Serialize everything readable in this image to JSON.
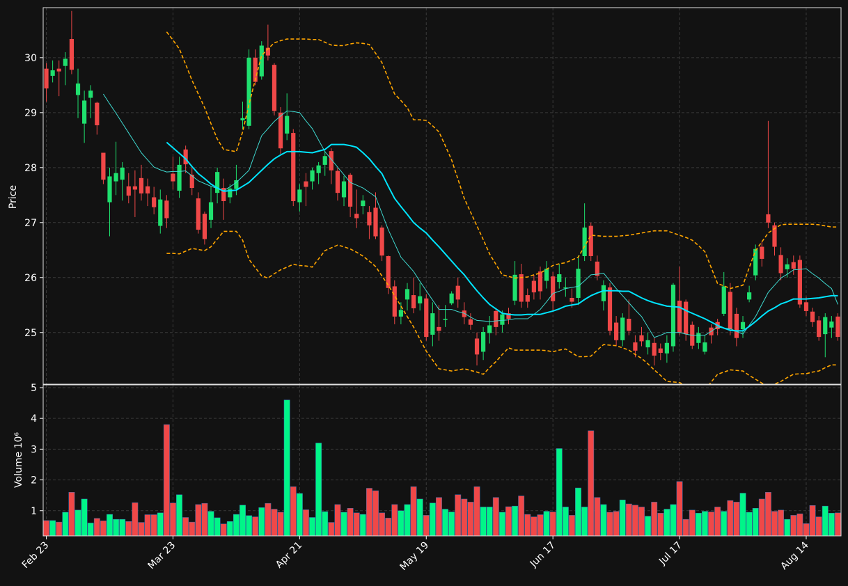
{
  "chart_data": {
    "type": "candlestick",
    "ylabel": "Price",
    "volume_ylabel": "Volume  10⁶",
    "categories": [
      "Feb 23",
      null,
      null,
      null,
      null,
      null,
      null,
      null,
      null,
      null,
      null,
      null,
      null,
      null,
      null,
      null,
      null,
      null,
      null,
      null,
      "Mar 23",
      null,
      null,
      null,
      null,
      null,
      null,
      null,
      null,
      null,
      null,
      null,
      null,
      null,
      null,
      null,
      null,
      null,
      null,
      null,
      "Apr 21",
      null,
      null,
      null,
      null,
      null,
      null,
      null,
      null,
      null,
      null,
      null,
      null,
      null,
      null,
      null,
      null,
      null,
      null,
      null,
      "May 19",
      null,
      null,
      null,
      null,
      null,
      null,
      null,
      null,
      null,
      null,
      null,
      null,
      null,
      null,
      null,
      null,
      null,
      null,
      null,
      "Jun 17",
      null,
      null,
      null,
      null,
      null,
      null,
      null,
      null,
      null,
      null,
      null,
      null,
      null,
      null,
      null,
      null,
      null,
      null,
      null,
      "Jul 17",
      null,
      null,
      null,
      null,
      null,
      null,
      null,
      null,
      null,
      null,
      null,
      null,
      null,
      null,
      null,
      null,
      null,
      null,
      null,
      "Aug 14",
      null,
      null,
      null,
      null,
      null
    ],
    "open": [
      29.8,
      29.67,
      29.8,
      29.85,
      30.34,
      29.32,
      28.8,
      29.27,
      29.18,
      28.27,
      27.37,
      27.75,
      27.78,
      27.66,
      27.66,
      27.81,
      27.66,
      27.46,
      26.94,
      27.4,
      27.89,
      27.58,
      28.33,
      27.87,
      27.44,
      27.16,
      27.05,
      27.54,
      27.63,
      27.46,
      27.61,
      28.86,
      28.76,
      30.0,
      29.66,
      30.18,
      29.87,
      29.0,
      28.62,
      28.63,
      27.37,
      27.75,
      27.75,
      27.9,
      28.05,
      28.3,
      27.94,
      27.46,
      27.87,
      27.16,
      27.3,
      27.19,
      27.27,
      26.91,
      26.39,
      25.84,
      25.29,
      25.6,
      25.68,
      25.53,
      25.62,
      24.96,
      25.1,
      25.23,
      25.53,
      25.85,
      25.4,
      25.24,
      24.89,
      24.65,
      24.99,
      25.39,
      25.14,
      25.35,
      25.58,
      26.06,
      25.68,
      25.94,
      26.11,
      25.94,
      26.02,
      25.92,
      25.8,
      25.63,
      25.63,
      26.39,
      26.94,
      26.29,
      25.57,
      25.82,
      25.18,
      24.86,
      25.25,
      24.82,
      24.95,
      24.73,
      24.81,
      24.71,
      24.62,
      24.75,
      25.58,
      25.56,
      25.14,
      24.81,
      24.65,
      25.09,
      25.19,
      25.34,
      25.74,
      25.34,
      25.06,
      25.6,
      26.04,
      26.56,
      27.15,
      26.95,
      26.41,
      26.15,
      26.28,
      26.32,
      25.55,
      25.38,
      25.22,
      24.97,
      25.09,
      25.29
    ],
    "high": [
      29.9,
      29.95,
      29.95,
      30.1,
      30.85,
      29.8,
      29.4,
      29.5,
      29.2,
      28.27,
      28.0,
      28.47,
      28.1,
      27.9,
      27.95,
      28.05,
      27.8,
      27.65,
      27.6,
      27.5,
      28.2,
      28.2,
      28.4,
      28.0,
      27.55,
      27.2,
      27.65,
      28.0,
      27.8,
      27.7,
      28.05,
      29.2,
      30.15,
      30.15,
      30.3,
      30.6,
      29.9,
      29.1,
      29.35,
      28.7,
      27.7,
      27.9,
      28.0,
      28.1,
      28.3,
      28.35,
      28.0,
      27.85,
      27.9,
      27.6,
      27.5,
      27.3,
      27.55,
      26.95,
      26.4,
      25.95,
      25.55,
      25.9,
      26.0,
      25.9,
      25.7,
      25.55,
      25.5,
      25.5,
      25.75,
      26.0,
      25.55,
      25.35,
      25.0,
      25.1,
      25.3,
      25.45,
      25.4,
      25.45,
      26.3,
      26.25,
      25.8,
      26.05,
      26.2,
      26.3,
      26.1,
      26.25,
      26.0,
      25.8,
      26.4,
      27.35,
      27.0,
      26.4,
      25.95,
      25.9,
      25.3,
      25.35,
      25.6,
      24.95,
      25.1,
      25.0,
      24.9,
      24.8,
      24.95,
      25.9,
      26.2,
      25.6,
      25.2,
      25.1,
      24.95,
      25.15,
      25.25,
      26.1,
      25.9,
      25.45,
      25.3,
      25.85,
      26.6,
      26.65,
      28.85,
      27.0,
      26.55,
      26.35,
      26.4,
      26.4,
      25.65,
      25.45,
      25.3,
      25.35,
      25.3,
      25.35
    ],
    "low": [
      29.2,
      29.55,
      29.3,
      29.5,
      29.7,
      28.9,
      28.45,
      28.9,
      28.6,
      27.7,
      26.75,
      27.5,
      27.4,
      27.35,
      27.1,
      27.4,
      27.3,
      27.15,
      26.8,
      26.9,
      27.6,
      27.45,
      27.9,
      27.5,
      26.8,
      26.6,
      26.9,
      27.35,
      27.05,
      27.35,
      27.5,
      28.7,
      28.7,
      29.5,
      29.6,
      29.95,
      28.95,
      28.25,
      28.5,
      27.3,
      27.2,
      27.3,
      27.6,
      27.7,
      27.85,
      27.7,
      27.4,
      27.3,
      27.1,
      26.9,
      27.15,
      26.7,
      26.7,
      26.3,
      25.7,
      25.15,
      25.15,
      25.4,
      25.35,
      25.4,
      24.85,
      24.75,
      24.85,
      25.1,
      25.5,
      25.45,
      25.15,
      25.05,
      24.4,
      24.5,
      24.8,
      24.95,
      25.0,
      25.15,
      25.5,
      25.45,
      25.45,
      25.6,
      25.6,
      25.8,
      25.4,
      25.8,
      25.65,
      25.45,
      25.5,
      26.3,
      26.3,
      25.95,
      25.4,
      24.95,
      24.75,
      24.75,
      24.95,
      24.55,
      24.75,
      24.6,
      24.4,
      24.5,
      24.45,
      24.65,
      24.95,
      24.85,
      24.7,
      24.7,
      24.6,
      24.8,
      24.95,
      25.3,
      24.95,
      24.75,
      24.9,
      25.55,
      25.95,
      26.2,
      26.9,
      26.4,
      25.95,
      26.0,
      26.05,
      25.45,
      25.3,
      25.1,
      24.85,
      24.55,
      24.9,
      24.85
    ],
    "close": [
      29.44,
      29.77,
      29.75,
      29.98,
      29.78,
      29.53,
      29.22,
      29.4,
      28.77,
      27.78,
      27.84,
      27.9,
      28.0,
      27.49,
      27.6,
      27.53,
      27.53,
      27.28,
      27.42,
      27.08,
      27.75,
      28.05,
      28.06,
      27.63,
      26.87,
      26.7,
      27.37,
      27.92,
      27.39,
      27.62,
      27.77,
      28.9,
      30.0,
      29.56,
      30.22,
      30.04,
      29.03,
      28.35,
      28.94,
      27.39,
      27.6,
      27.65,
      27.95,
      28.04,
      28.21,
      27.95,
      27.54,
      27.75,
      27.29,
      27.08,
      27.4,
      26.95,
      26.75,
      26.4,
      25.81,
      25.29,
      25.41,
      25.79,
      25.44,
      25.66,
      24.92,
      25.35,
      25.03,
      25.25,
      25.71,
      25.6,
      25.28,
      25.14,
      24.6,
      25.01,
      25.13,
      25.1,
      25.33,
      25.25,
      26.05,
      25.56,
      25.56,
      25.73,
      25.75,
      26.16,
      25.57,
      26.06,
      25.82,
      25.56,
      26.16,
      26.91,
      26.39,
      26.03,
      25.86,
      25.03,
      24.86,
      25.27,
      25.03,
      24.67,
      24.84,
      24.86,
      24.58,
      24.63,
      24.81,
      25.87,
      25.0,
      24.97,
      24.76,
      24.99,
      24.82,
      24.95,
      25.06,
      25.84,
      25.06,
      24.9,
      25.19,
      25.73,
      26.52,
      26.34,
      27.0,
      26.56,
      26.08,
      26.24,
      26.16,
      25.51,
      25.39,
      25.19,
      24.92,
      25.28,
      25.2,
      24.92
    ],
    "volume": [
      0.68,
      0.68,
      0.63,
      0.95,
      1.6,
      1.02,
      1.38,
      0.6,
      0.75,
      0.67,
      0.88,
      0.72,
      0.72,
      0.65,
      1.26,
      0.62,
      0.87,
      0.87,
      0.93,
      3.8,
      1.25,
      1.52,
      0.78,
      0.63,
      1.2,
      1.24,
      0.98,
      0.77,
      0.57,
      0.65,
      0.88,
      1.18,
      0.84,
      0.8,
      1.1,
      1.24,
      1.05,
      0.95,
      4.6,
      1.78,
      1.56,
      1.03,
      0.78,
      3.2,
      0.97,
      0.62,
      1.2,
      0.95,
      1.08,
      0.93,
      0.88,
      1.73,
      1.65,
      0.93,
      0.76,
      1.2,
      1.0,
      1.2,
      1.78,
      1.38,
      0.85,
      1.25,
      1.43,
      1.05,
      0.96,
      1.52,
      1.38,
      1.28,
      1.78,
      1.12,
      1.12,
      1.43,
      0.95,
      1.13,
      1.15,
      1.48,
      0.88,
      0.8,
      0.87,
      0.98,
      0.96,
      3.02,
      1.12,
      0.85,
      1.74,
      1.12,
      3.6,
      1.43,
      1.2,
      0.95,
      0.98,
      1.35,
      1.22,
      1.18,
      1.12,
      0.82,
      1.28,
      0.92,
      1.05,
      1.2,
      1.95,
      0.72,
      1.02,
      0.92,
      0.98,
      0.96,
      1.12,
      0.98,
      1.33,
      1.28,
      1.57,
      0.95,
      1.08,
      1.38,
      1.6,
      0.98,
      1.02,
      0.72,
      0.85,
      0.9,
      0.58,
      1.17,
      0.8,
      1.15,
      0.92,
      0.93
    ],
    "up_color": "#1fe06e",
    "down_color": "#f04848",
    "volume_up_color": "#00f588",
    "volume_down_color": "#f04848",
    "ylim": [
      24.06,
      30.91
    ],
    "yticks": [
      25,
      26,
      27,
      28,
      29,
      30
    ],
    "volume_ylim": [
      0.18,
      5.09
    ],
    "volume_yticks": [
      1,
      2,
      3,
      4,
      5
    ],
    "grid": true,
    "overlays": [
      {
        "color": "#3fd9d0",
        "width": 1,
        "dashed": false,
        "values": [
          null,
          null,
          null,
          null,
          null,
          null,
          null,
          null,
          null,
          29.34,
          29.16,
          28.99,
          28.81,
          28.63,
          28.45,
          28.27,
          28.14,
          28.01,
          27.96,
          27.92,
          27.93,
          27.93,
          27.94,
          27.85,
          27.76,
          27.71,
          27.66,
          27.62,
          27.58,
          27.65,
          27.73,
          27.84,
          27.95,
          28.27,
          28.58,
          28.71,
          28.84,
          28.94,
          29.03,
          29.02,
          29.0,
          28.85,
          28.71,
          28.5,
          28.29,
          28.15,
          28.01,
          27.87,
          27.73,
          27.68,
          27.63,
          27.55,
          27.47,
          27.17,
          26.87,
          26.62,
          26.37,
          26.24,
          26.11,
          25.93,
          25.76,
          25.59,
          25.42,
          25.42,
          25.42,
          25.38,
          25.35,
          25.28,
          25.22,
          25.21,
          25.2,
          25.21,
          25.22,
          25.23,
          25.25,
          25.25,
          25.25,
          25.33,
          25.42,
          25.56,
          25.71,
          25.75,
          25.8,
          25.82,
          25.84,
          25.94,
          26.05,
          26.06,
          26.08,
          25.94,
          25.8,
          25.67,
          25.54,
          25.41,
          25.29,
          25.1,
          24.91,
          24.95,
          25.0,
          25.0,
          25.0,
          24.97,
          24.95,
          24.95,
          24.95,
          25.02,
          25.1,
          25.08,
          25.07,
          25.02,
          24.97,
          25.13,
          25.29,
          25.51,
          25.73,
          25.86,
          25.99,
          26.06,
          26.14,
          26.15,
          26.16,
          26.07,
          25.99,
          25.89,
          25.8,
          25.51
        ]
      },
      {
        "color": "#00e5ff",
        "width": 2,
        "dashed": false,
        "values": [
          null,
          null,
          null,
          null,
          null,
          null,
          null,
          null,
          null,
          null,
          null,
          null,
          null,
          null,
          null,
          null,
          null,
          null,
          null,
          28.46,
          28.36,
          28.26,
          28.16,
          28.02,
          27.89,
          27.8,
          27.7,
          27.63,
          27.57,
          27.58,
          27.59,
          27.66,
          27.73,
          27.84,
          27.95,
          28.06,
          28.16,
          28.23,
          28.29,
          28.29,
          28.29,
          28.28,
          28.27,
          28.3,
          28.33,
          28.42,
          28.42,
          28.42,
          28.4,
          28.37,
          28.27,
          28.16,
          28.02,
          27.89,
          27.66,
          27.44,
          27.29,
          27.15,
          27.0,
          26.9,
          26.81,
          26.68,
          26.56,
          26.43,
          26.3,
          26.17,
          26.05,
          25.9,
          25.76,
          25.63,
          25.51,
          25.43,
          25.35,
          25.33,
          25.32,
          25.32,
          25.33,
          25.33,
          25.33,
          25.36,
          25.39,
          25.43,
          25.48,
          25.5,
          25.52,
          25.6,
          25.67,
          25.72,
          25.76,
          25.76,
          25.76,
          25.75,
          25.75,
          25.69,
          25.63,
          25.58,
          25.54,
          25.51,
          25.48,
          25.47,
          25.46,
          25.4,
          25.35,
          25.3,
          25.25,
          25.19,
          25.13,
          25.08,
          25.04,
          25.03,
          25.03,
          25.11,
          25.2,
          25.3,
          25.39,
          25.45,
          25.52,
          25.56,
          25.61,
          25.61,
          25.61,
          25.62,
          25.63,
          25.65,
          25.67,
          25.67
        ]
      },
      {
        "color": "#ffa500",
        "width": 1.6,
        "dashed": true,
        "values": [
          null,
          null,
          null,
          null,
          null,
          null,
          null,
          null,
          null,
          null,
          null,
          null,
          null,
          null,
          null,
          null,
          null,
          null,
          null,
          30.47,
          30.32,
          30.16,
          29.88,
          29.59,
          29.34,
          29.09,
          28.8,
          28.52,
          28.33,
          28.31,
          28.29,
          28.65,
          29.15,
          29.6,
          30.04,
          30.16,
          30.27,
          30.31,
          30.34,
          30.34,
          30.34,
          30.34,
          30.33,
          30.33,
          30.28,
          30.23,
          30.22,
          30.22,
          30.25,
          30.27,
          30.26,
          30.24,
          30.08,
          29.91,
          29.62,
          29.34,
          29.22,
          29.09,
          28.87,
          28.87,
          28.86,
          28.76,
          28.65,
          28.4,
          28.14,
          27.79,
          27.44,
          27.19,
          26.94,
          26.69,
          26.43,
          26.24,
          26.05,
          26.02,
          25.99,
          26.0,
          26.01,
          26.05,
          26.08,
          26.15,
          26.22,
          26.25,
          26.27,
          26.32,
          26.37,
          26.57,
          26.77,
          26.76,
          26.75,
          26.75,
          26.75,
          26.76,
          26.77,
          26.79,
          26.81,
          26.83,
          26.85,
          26.85,
          26.85,
          26.81,
          26.77,
          26.73,
          26.68,
          26.58,
          26.47,
          26.18,
          25.89,
          25.85,
          25.8,
          25.83,
          25.86,
          26.18,
          26.49,
          26.65,
          26.81,
          26.89,
          26.96,
          26.97,
          26.97,
          26.97,
          26.97,
          26.97,
          26.96,
          26.94,
          26.92,
          26.92
        ]
      },
      {
        "color": "#ffa500",
        "width": 1.6,
        "dashed": true,
        "values": [
          null,
          null,
          null,
          null,
          null,
          null,
          null,
          null,
          null,
          null,
          null,
          null,
          null,
          null,
          null,
          null,
          null,
          null,
          null,
          26.44,
          26.44,
          26.43,
          26.48,
          26.53,
          26.51,
          26.49,
          26.56,
          26.7,
          26.84,
          26.84,
          26.84,
          26.68,
          26.33,
          26.18,
          26.03,
          25.99,
          26.07,
          26.14,
          26.19,
          26.24,
          26.22,
          26.21,
          26.19,
          26.34,
          26.49,
          26.54,
          26.59,
          26.56,
          26.52,
          26.46,
          26.39,
          26.3,
          26.2,
          26.03,
          25.86,
          25.67,
          25.48,
          25.29,
          25.1,
          24.88,
          24.66,
          24.5,
          24.34,
          24.32,
          24.3,
          24.32,
          24.34,
          24.31,
          24.28,
          24.24,
          24.36,
          24.47,
          24.6,
          24.72,
          24.68,
          24.68,
          24.68,
          24.68,
          24.68,
          24.67,
          24.65,
          24.68,
          24.7,
          24.63,
          24.56,
          24.56,
          24.57,
          24.68,
          24.78,
          24.77,
          24.76,
          24.72,
          24.68,
          24.6,
          24.53,
          24.43,
          24.32,
          24.22,
          24.11,
          24.1,
          24.09,
          24.03,
          23.98,
          23.96,
          23.95,
          24.1,
          24.24,
          24.28,
          24.32,
          24.31,
          24.3,
          24.22,
          24.15,
          24.08,
          24.02,
          24.06,
          24.11,
          24.18,
          24.24,
          24.25,
          24.25,
          24.28,
          24.3,
          24.36,
          24.41,
          24.41
        ]
      }
    ]
  }
}
